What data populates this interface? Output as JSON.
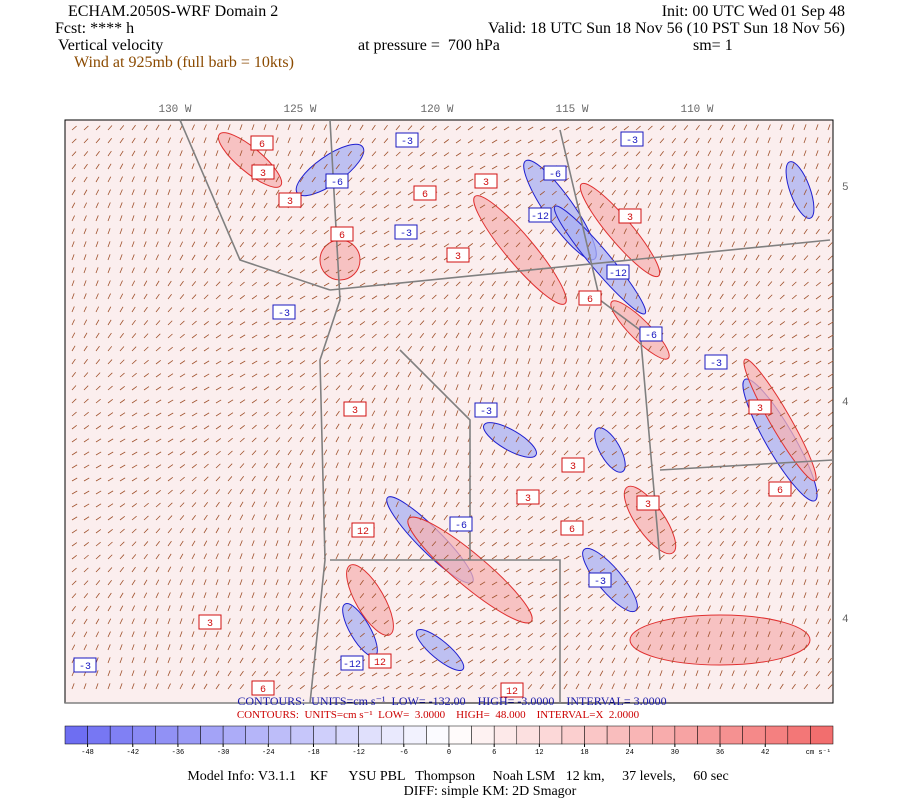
{
  "header": {
    "title": "ECHAM.2050S-WRF Domain 2",
    "init": "Init: 00 UTC Wed 01 Sep 48",
    "forecast": "Fcst: **** h",
    "valid": "Valid: 18 UTC Sun 18 Nov 56 (10 PST Sun 18 Nov 56)",
    "field": "Vertical velocity",
    "level": "at pressure =  700 hPa",
    "smoothing": "sm= 1",
    "wind": "Wind at 925mb (full barb = 10kts)"
  },
  "map": {
    "lon_labels": [
      "130 W",
      "125 W",
      "120 W",
      "115 W",
      "110 W"
    ],
    "lat_labels": [
      "5",
      "4",
      "4"
    ],
    "contour_labels": [
      "6",
      "-3",
      "-6",
      "3",
      "6",
      "3",
      "-3",
      "-12",
      "-3",
      "3",
      "6",
      "-6",
      "-12",
      "-3",
      "3",
      "6",
      "3",
      "-3",
      "-6",
      "3",
      "6",
      "12",
      "-3",
      "3",
      "3",
      "-3",
      "-12",
      "12",
      "6",
      "-6",
      "3",
      "3",
      "-3",
      "12",
      "6",
      "3"
    ]
  },
  "contour_info": {
    "negative": "CONTOURS:  UNITS=cm s⁻¹  LOW= -132.00    HIGH= -3.0000    INTERVAL= 3.0000",
    "positive": "CONTOURS:  UNITS=cm s⁻¹  LOW=  3.0000    HIGH=  48.000    INTERVAL=X  2.0000"
  },
  "colorbar": {
    "lim": [
      -51,
      51
    ],
    "step": 3,
    "ticks": [
      -48,
      -42,
      -36,
      -30,
      -24,
      -18,
      -12,
      -6,
      0,
      6,
      12,
      18,
      24,
      30,
      36,
      42
    ],
    "neg_color": "#6a6af2",
    "pos_color": "#f26a6a",
    "unit": "cm s⁻¹"
  },
  "footer": {
    "model_info": "Model Info: V3.1.1    KF      YSU PBL   Thompson     Noah LSM   12 km,     37 levels,     60 sec",
    "diff": "DIFF: simple KM: 2D Smagor"
  }
}
